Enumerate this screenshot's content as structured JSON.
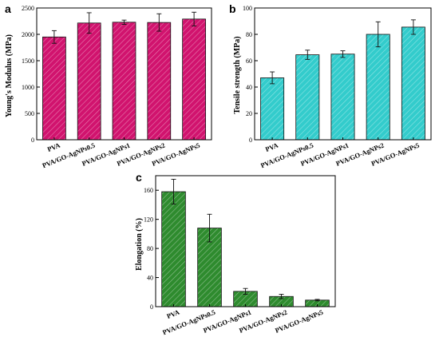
{
  "chart_data": [
    {
      "panel": "a",
      "type": "bar",
      "ylabel": "Young's Modulus (MPa)",
      "xlabel": "",
      "categories": [
        "PVA",
        "PVA/GO-AgNPs0.5",
        "PVA/GO-AgNPs1",
        "PVA/GO-AgNPs2",
        "PVA/GO-AgNPs5"
      ],
      "values": [
        1950,
        2215,
        2230,
        2225,
        2290
      ],
      "errors": [
        120,
        195,
        40,
        165,
        130
      ],
      "ylim": [
        0,
        2500
      ],
      "yticks": [
        0,
        500,
        1000,
        1500,
        2000,
        2500
      ],
      "bar_color": "#d1136e",
      "hatch": "diagonal",
      "grid": false
    },
    {
      "panel": "b",
      "type": "bar",
      "ylabel": "Tensile strength (MPa)",
      "xlabel": "",
      "categories": [
        "PVA",
        "PVA/GO-AgNPs0.5",
        "PVA/GO-AgNPs1",
        "PVA/GO-AgNPs2",
        "PVA/GO-AgNPs5"
      ],
      "values": [
        47,
        64.5,
        65,
        80,
        85.5
      ],
      "errors": [
        4.5,
        3.5,
        2.5,
        9.5,
        5.5
      ],
      "ylim": [
        0,
        100
      ],
      "yticks": [
        0,
        20,
        40,
        60,
        80,
        100
      ],
      "bar_color": "#33cccc",
      "hatch": "diagonal",
      "grid": false
    },
    {
      "panel": "c",
      "type": "bar",
      "ylabel": "Elongation (%)",
      "xlabel": "",
      "categories": [
        "PVA",
        "PVA/GO-AgNPs0.5",
        "PVA/GO-AgNPs1",
        "PVA/GO-AgNPs2",
        "PVA/GO-AgNPs5"
      ],
      "values": [
        158,
        108,
        21,
        14,
        9
      ],
      "errors": [
        17,
        19,
        4,
        3,
        1
      ],
      "ylim": [
        0,
        180
      ],
      "yticks": [
        0,
        40,
        80,
        120,
        160
      ],
      "bar_color": "#2e8b2e",
      "hatch": "diagonal",
      "grid": false
    }
  ]
}
